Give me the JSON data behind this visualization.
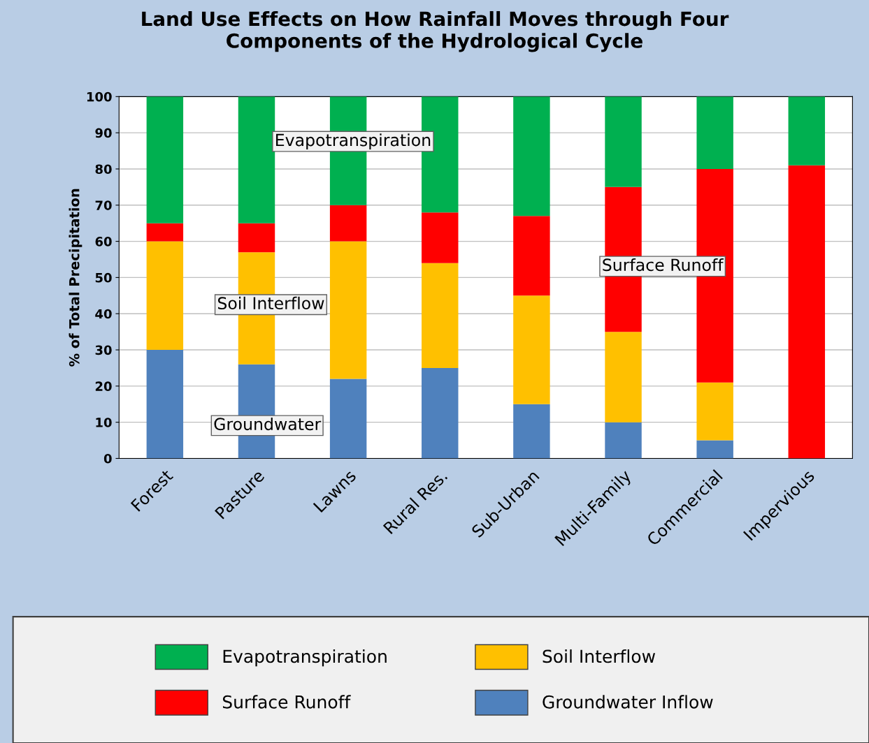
{
  "chart_data": {
    "type": "bar",
    "stacked": true,
    "title": "Land Use Effects on How Rainfall Moves through Four\nComponents of the Hydrological Cycle",
    "ylabel": "% of Total Precipitation",
    "categories": [
      "Forest",
      "Pasture",
      "Lawns",
      "Rural Res.",
      "Sub-Urban",
      "Multi-Family",
      "Commercial",
      "Impervious"
    ],
    "series": [
      {
        "name": "Groundwater Inflow",
        "color": "#4f81bd",
        "values": [
          30,
          26,
          22,
          25,
          15,
          10,
          5,
          0
        ]
      },
      {
        "name": "Soil Interflow",
        "color": "#ffc000",
        "values": [
          30,
          31,
          38,
          29,
          30,
          25,
          16,
          0
        ]
      },
      {
        "name": "Surface Runoff",
        "color": "#ff0000",
        "values": [
          5,
          8,
          10,
          14,
          22,
          40,
          59,
          81
        ]
      },
      {
        "name": "Evapotranspiration",
        "color": "#00b050",
        "values": [
          35,
          35,
          30,
          32,
          33,
          25,
          20,
          19
        ]
      }
    ],
    "annotations": [
      "Evapotranspiration",
      "Soil Interflow",
      "Groundwater",
      "Surface Runoff"
    ],
    "ylim": [
      0,
      100
    ],
    "yticks": [
      0,
      10,
      20,
      30,
      40,
      50,
      60,
      70,
      80,
      90,
      100
    ],
    "grid": "y",
    "legend": "bottom"
  }
}
